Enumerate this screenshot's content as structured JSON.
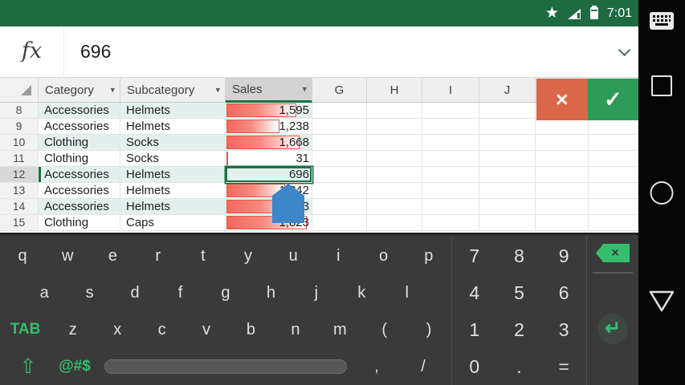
{
  "status_bar": {
    "time": "7:01"
  },
  "formula_bar": {
    "fx": "fx",
    "value": "696"
  },
  "icons": {
    "star": "★",
    "filter_arrow": "▾",
    "cancel_glyph": "×",
    "confirm_glyph": "✓"
  },
  "sheet": {
    "headers": [
      {
        "label": "Category",
        "filter": true
      },
      {
        "label": "Subcategory",
        "filter": true
      },
      {
        "label": "Sales",
        "filter": true,
        "selected": true
      },
      {
        "label": "G"
      },
      {
        "label": "H"
      },
      {
        "label": "I"
      },
      {
        "label": "J"
      }
    ],
    "rows": [
      {
        "num": "8",
        "category": "Accessories",
        "subcategory": "Helmets",
        "sales": "1,595",
        "band": true,
        "bar": 0.82
      },
      {
        "num": "9",
        "category": "Accessories",
        "subcategory": "Helmets",
        "sales": "1,238",
        "band": false,
        "bar": 0.62
      },
      {
        "num": "10",
        "category": "Clothing",
        "subcategory": "Socks",
        "sales": "1,668",
        "band": true,
        "bar": 0.86
      },
      {
        "num": "11",
        "category": "Clothing",
        "subcategory": "Socks",
        "sales": "31",
        "band": false,
        "bar": 0.02
      },
      {
        "num": "12",
        "category": "Accessories",
        "subcategory": "Helmets",
        "sales": "696",
        "band": true,
        "bar": 0,
        "selected": true
      },
      {
        "num": "13",
        "category": "Accessories",
        "subcategory": "Helmets",
        "sales": "1,342",
        "band": false,
        "bar": 0.69
      },
      {
        "num": "14",
        "category": "Accessories",
        "subcategory": "Helmets",
        "sales": "1,683",
        "band": true,
        "bar": 0.87
      },
      {
        "num": "15",
        "category": "Clothing",
        "subcategory": "Caps",
        "sales": "1,823",
        "band": false,
        "bar": 0.94
      }
    ],
    "selected_cell": {
      "row": "12",
      "column": "Sales",
      "value": "696"
    }
  },
  "edit_actions": {
    "cancel": "cancel-entry",
    "confirm": "confirm-entry"
  },
  "keyboard": {
    "row1": [
      "q",
      "w",
      "e",
      "r",
      "t",
      "y",
      "u",
      "i",
      "o",
      "p"
    ],
    "row2": [
      "a",
      "s",
      "d",
      "f",
      "g",
      "h",
      "j",
      "k",
      "l"
    ],
    "tab_label": "TAB",
    "row3": [
      "z",
      "x",
      "c",
      "v",
      "b",
      "n",
      "m",
      "(",
      ")"
    ],
    "shift_glyph": "⇧",
    "symbols_label": "@#$",
    "comma": ",",
    "slash": "/",
    "numpad": [
      "7",
      "8",
      "9",
      "4",
      "5",
      "6",
      "1",
      "2",
      "3",
      "0",
      ".",
      "="
    ],
    "backspace_glyph": "×",
    "enter_glyph": "↵"
  },
  "nav_bar": {
    "items": [
      "keyboard-toggle",
      "recent-apps",
      "home",
      "back"
    ]
  }
}
